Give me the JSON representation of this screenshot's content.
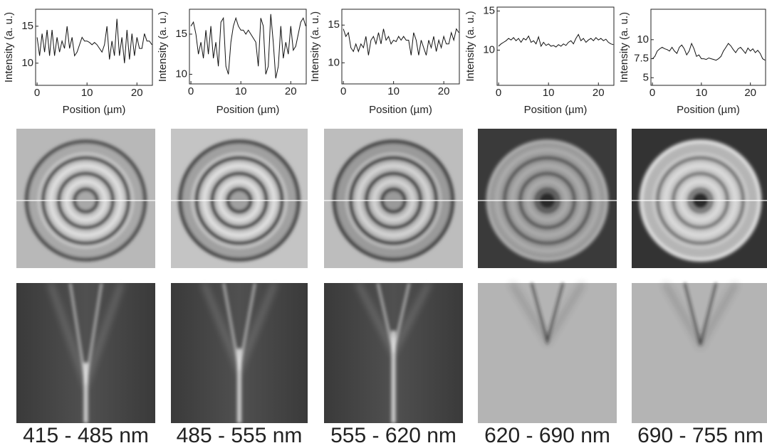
{
  "chart_data": [
    {
      "type": "line",
      "caption": "415 - 485 nm",
      "xlabel": "Position (µm)",
      "ylabel": "Intensity (a. u.)",
      "xlim": [
        -0.3,
        23.1
      ],
      "ylim": [
        7,
        17.3
      ],
      "xticks": [
        0,
        10,
        20
      ],
      "yticks": [
        10,
        15
      ],
      "x": [
        0,
        0.5,
        1,
        1.5,
        2,
        2.5,
        3,
        3.5,
        4,
        4.5,
        5,
        5.5,
        6,
        6.5,
        7,
        7.5,
        8,
        8.5,
        9,
        9.5,
        10,
        10.5,
        11,
        11.5,
        12,
        12.5,
        13,
        13.5,
        14,
        14.5,
        15,
        15.5,
        16,
        16.5,
        17,
        17.5,
        18,
        18.5,
        19,
        19.5,
        20,
        20.5,
        21,
        21.5,
        22,
        22.5,
        23
      ],
      "series": [
        {
          "color": "#111",
          "values": [
            13.5,
            11,
            14,
            11.5,
            14.5,
            11,
            14.5,
            11,
            13.5,
            11.5,
            13,
            12,
            15,
            12,
            13.5,
            11,
            11.5,
            12.5,
            13.5,
            13,
            13,
            12.8,
            12.5,
            12.8,
            12.5,
            12,
            11.5,
            12.5,
            15,
            10.5,
            13,
            11,
            16,
            11,
            13.5,
            10,
            14.5,
            10.5,
            14,
            11,
            13.5,
            12,
            12,
            14,
            13,
            13,
            12.5
          ]
        }
      ]
    },
    {
      "type": "line",
      "caption": "485 - 555 nm",
      "xlabel": "Position (µm)",
      "ylabel": "Intensity (a. u.)",
      "xlim": [
        -0.3,
        23.1
      ],
      "ylim": [
        8.8,
        18.1
      ],
      "xticks": [
        0,
        10,
        20
      ],
      "yticks": [
        10,
        15
      ],
      "x": [
        0,
        0.5,
        1,
        1.5,
        2,
        2.5,
        3,
        3.5,
        4,
        4.5,
        5,
        5.5,
        6,
        6.5,
        7,
        7.5,
        8,
        8.5,
        9,
        9.5,
        10,
        10.5,
        11,
        11.5,
        12,
        12.5,
        13,
        13.5,
        14,
        14.5,
        15,
        15.5,
        16,
        16.5,
        17,
        17.5,
        18,
        18.5,
        19,
        19.5,
        20,
        20.5,
        21,
        21.5,
        22,
        22.5,
        23
      ],
      "series": [
        {
          "color": "#111",
          "values": [
            16,
            16.5,
            15,
            12.5,
            14,
            12,
            15.5,
            12.5,
            16,
            12,
            14,
            11,
            16.5,
            17,
            11,
            10,
            14,
            16,
            17,
            16,
            15.5,
            15.5,
            15,
            15.5,
            15,
            14.5,
            14,
            11,
            17,
            16,
            10,
            11,
            17.5,
            14,
            9.5,
            11,
            16,
            12,
            14,
            12.5,
            16,
            13,
            13.5,
            15,
            16.5,
            17,
            16
          ]
        }
      ]
    },
    {
      "type": "line",
      "caption": "555 - 620 nm",
      "xlabel": "Position (µm)",
      "ylabel": "Intensity (a. u.)",
      "xlim": [
        -0.3,
        23.1
      ],
      "ylim": [
        7.2,
        17.1
      ],
      "xticks": [
        0,
        10,
        20
      ],
      "yticks": [
        10,
        15
      ],
      "x": [
        0,
        0.5,
        1,
        1.5,
        2,
        2.5,
        3,
        3.5,
        4,
        4.5,
        5,
        5.5,
        6,
        6.5,
        7,
        7.5,
        8,
        8.5,
        9,
        9.5,
        10,
        10.5,
        11,
        11.5,
        12,
        12.5,
        13,
        13.5,
        14,
        14.5,
        15,
        15.5,
        16,
        16.5,
        17,
        17.5,
        18,
        18.5,
        19,
        19.5,
        20,
        20.5,
        21,
        21.5,
        22,
        22.5,
        23
      ],
      "series": [
        {
          "color": "#111",
          "values": [
            14.5,
            13.5,
            14,
            12,
            11.5,
            12.5,
            11.5,
            12.5,
            12,
            13.5,
            11,
            13,
            13.5,
            12.5,
            14,
            12.5,
            14.5,
            13,
            13.5,
            12.5,
            13,
            12.8,
            13.5,
            13,
            13.5,
            13,
            13,
            11,
            14,
            13,
            11,
            13,
            12,
            11,
            13,
            12,
            13.5,
            11.5,
            13,
            12,
            13.5,
            12.5,
            12.5,
            14,
            13,
            14.5,
            14
          ]
        }
      ]
    },
    {
      "type": "line",
      "caption": "620 - 690 nm",
      "xlabel": "Position (µm)",
      "ylabel": "Intensity (a. u.)",
      "xlim": [
        -0.3,
        23.1
      ],
      "ylim": [
        5.5,
        15.5
      ],
      "xticks": [
        0,
        10,
        20
      ],
      "yticks": [
        10,
        15
      ],
      "x": [
        0,
        0.5,
        1,
        1.5,
        2,
        2.5,
        3,
        3.5,
        4,
        4.5,
        5,
        5.5,
        6,
        6.5,
        7,
        7.5,
        8,
        8.5,
        9,
        9.5,
        10,
        10.5,
        11,
        11.5,
        12,
        12.5,
        13,
        13.5,
        14,
        14.5,
        15,
        15.5,
        16,
        16.5,
        17,
        17.5,
        18,
        18.5,
        19,
        19.5,
        20,
        20.5,
        21,
        21.5,
        22,
        22.5,
        23
      ],
      "series": [
        {
          "color": "#111",
          "values": [
            10.5,
            10.8,
            11,
            11.2,
            11.5,
            11.3,
            11.6,
            11.2,
            11.5,
            11,
            11.5,
            11.3,
            11.8,
            11,
            11.2,
            10.8,
            11.7,
            10.5,
            11,
            10.6,
            10.8,
            10.5,
            10.6,
            10.4,
            10.7,
            10.5,
            10.8,
            10.6,
            11,
            11.2,
            10.8,
            11.5,
            12,
            11.2,
            11.5,
            11,
            11.3,
            11.5,
            11.2,
            11.6,
            11.3,
            11.5,
            11.2,
            11.4,
            11,
            10.8,
            10.7
          ]
        }
      ]
    },
    {
      "type": "line",
      "caption": "690 - 755 nm",
      "xlabel": "Position (µm)",
      "ylabel": "Intensity (a. u.)",
      "xlim": [
        -0.3,
        23.1
      ],
      "ylim": [
        4,
        14
      ],
      "xticks": [
        0,
        10,
        20
      ],
      "yticks": [
        5,
        7.5,
        10
      ],
      "x": [
        0,
        0.5,
        1,
        1.5,
        2,
        2.5,
        3,
        3.5,
        4,
        4.5,
        5,
        5.5,
        6,
        6.5,
        7,
        7.5,
        8,
        8.5,
        9,
        9.5,
        10,
        10.5,
        11,
        11.5,
        12,
        12.5,
        13,
        13.5,
        14,
        14.5,
        15,
        15.5,
        16,
        16.5,
        17,
        17.5,
        18,
        18.5,
        19,
        19.5,
        20,
        20.5,
        21,
        21.5,
        22,
        22.5,
        23
      ],
      "series": [
        {
          "color": "#111",
          "values": [
            7.5,
            7.8,
            8.5,
            8.8,
            9,
            8.8,
            8.7,
            8.5,
            9,
            8.5,
            8.2,
            9,
            9.3,
            8.8,
            8,
            8.5,
            9.5,
            8.8,
            7.8,
            8,
            7.5,
            7.5,
            7.4,
            7.6,
            7.5,
            7.4,
            7.3,
            7.5,
            7.8,
            8.5,
            9,
            9.5,
            9.2,
            8.7,
            8.3,
            8.8,
            9,
            8.6,
            8.2,
            8.9,
            8.5,
            8.8,
            8.3,
            8.6,
            8.2,
            7.5,
            7.3
          ]
        }
      ]
    }
  ]
}
